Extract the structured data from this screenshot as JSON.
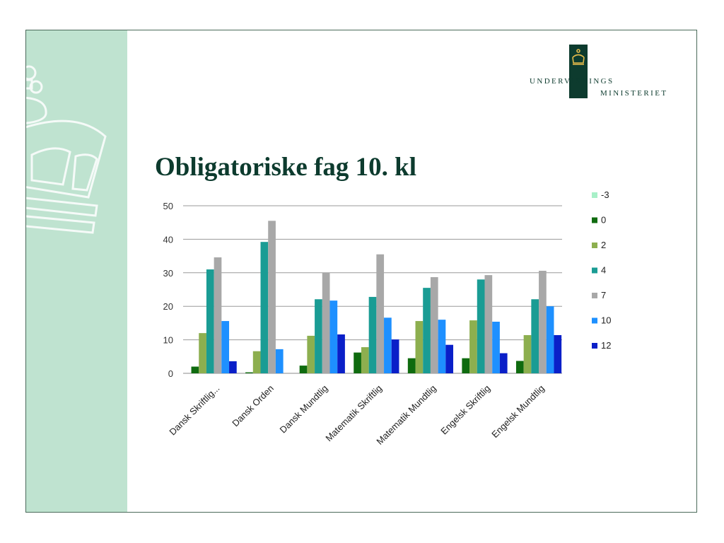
{
  "logo": {
    "line1": "UNDERVISNINGS",
    "line2": "MINISTERIET",
    "color": "#0d3b2e"
  },
  "title": "Obligatoriske fag 10. kl",
  "colors": {
    "side_band": "#bfe3d0",
    "title": "#0d3b2e"
  },
  "chart_data": {
    "type": "bar",
    "title": "",
    "xlabel": "",
    "ylabel": "",
    "ylim": [
      0,
      50
    ],
    "yticks": [
      0,
      10,
      20,
      30,
      40,
      50
    ],
    "grid": true,
    "legend_position": "right",
    "categories": [
      "Dansk Skriftlig...",
      "Dansk Orden",
      "Dansk Mundtlig",
      "Matematik Skriftlig",
      "Matematik Mundtlig",
      "Engelsk Skriftlig",
      "Engelsk Mundtlig"
    ],
    "series": [
      {
        "name": "-3",
        "color": "#a8f0c8",
        "values": [
          0,
          0,
          0,
          0,
          0,
          0,
          0
        ]
      },
      {
        "name": "0",
        "color": "#0f6b0f",
        "values": [
          2,
          0.3,
          2.3,
          6.2,
          4.5,
          4.5,
          3.7
        ]
      },
      {
        "name": "2",
        "color": "#8daf4f",
        "values": [
          12,
          6.6,
          11.2,
          7.8,
          15.6,
          15.8,
          11.4
        ]
      },
      {
        "name": "4",
        "color": "#1a9c94",
        "values": [
          31,
          39.2,
          22.1,
          22.8,
          25.5,
          28,
          22.1
        ]
      },
      {
        "name": "7",
        "color": "#a8a8a8",
        "values": [
          34.6,
          45.5,
          30,
          35.5,
          28.7,
          29.3,
          30.6
        ]
      },
      {
        "name": "10",
        "color": "#1e90ff",
        "values": [
          15.6,
          7.2,
          21.7,
          16.6,
          16,
          15.4,
          20
        ]
      },
      {
        "name": "12",
        "color": "#0a1fc8",
        "values": [
          3.6,
          0,
          11.6,
          10.1,
          8.5,
          6,
          11.4
        ]
      }
    ]
  }
}
